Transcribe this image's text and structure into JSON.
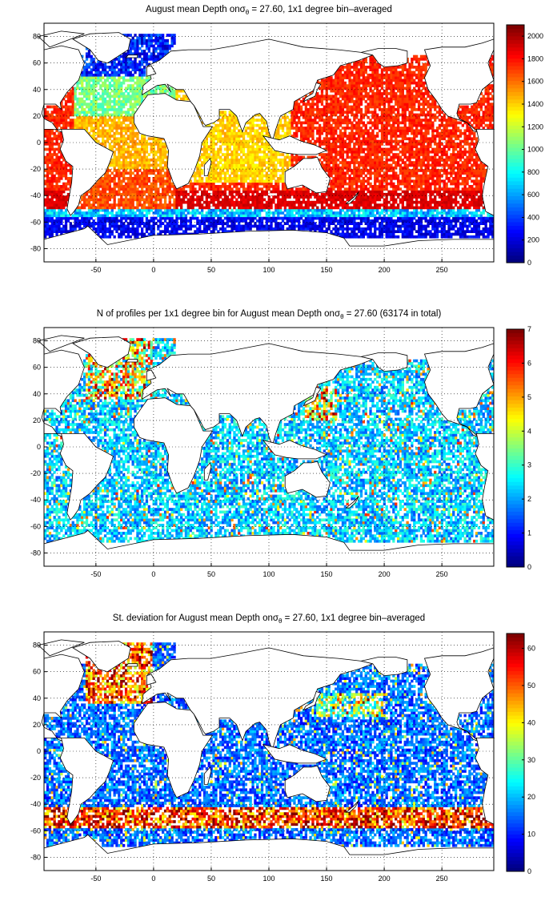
{
  "colormap": "jet",
  "land_color": "#ffffff",
  "coast_color": "#000000",
  "panels": [
    {
      "title_pre": "August mean Depth on",
      "title_sigma": "σ",
      "title_sub": "θ",
      "title_post": " = 27.60, 1x1 degree bin–averaged",
      "colorbar_ticks": [
        "0",
        "200",
        "400",
        "600",
        "800",
        "1000",
        "1200",
        "1400",
        "1600",
        "1800",
        "2000"
      ],
      "colorbar_range": [
        0,
        2100
      ],
      "variable": "depth"
    },
    {
      "title_pre": "N of profiles per 1x1 degree bin for August mean Depth on",
      "title_sigma": "σ",
      "title_sub": "θ",
      "title_post": " = 27.60 (63174 in total)",
      "colorbar_ticks": [
        "0",
        "1",
        "2",
        "3",
        "4",
        "5",
        "6",
        "7"
      ],
      "colorbar_range": [
        0,
        7
      ],
      "variable": "count"
    },
    {
      "title_pre": "St. deviation for August mean Depth on",
      "title_sigma": "σ",
      "title_sub": "θ",
      "title_post": " = 27.60, 1x1 degree bin–averaged",
      "colorbar_ticks": [
        "0",
        "10",
        "20",
        "30",
        "40",
        "50",
        "60"
      ],
      "colorbar_range": [
        0,
        64
      ],
      "variable": "stdev"
    }
  ],
  "x_ticks": [
    "-50",
    "0",
    "50",
    "100",
    "150",
    "200",
    "250"
  ],
  "x_tick_values": [
    -50,
    0,
    50,
    100,
    150,
    200,
    250
  ],
  "x_range": [
    -95,
    295
  ],
  "y_ticks": [
    "80",
    "60",
    "40",
    "20",
    "0",
    "-20",
    "-40",
    "-60",
    "-80"
  ],
  "y_tick_values": [
    80,
    60,
    40,
    20,
    0,
    -20,
    -40,
    -60,
    -80
  ],
  "y_range": [
    -90,
    90
  ]
}
